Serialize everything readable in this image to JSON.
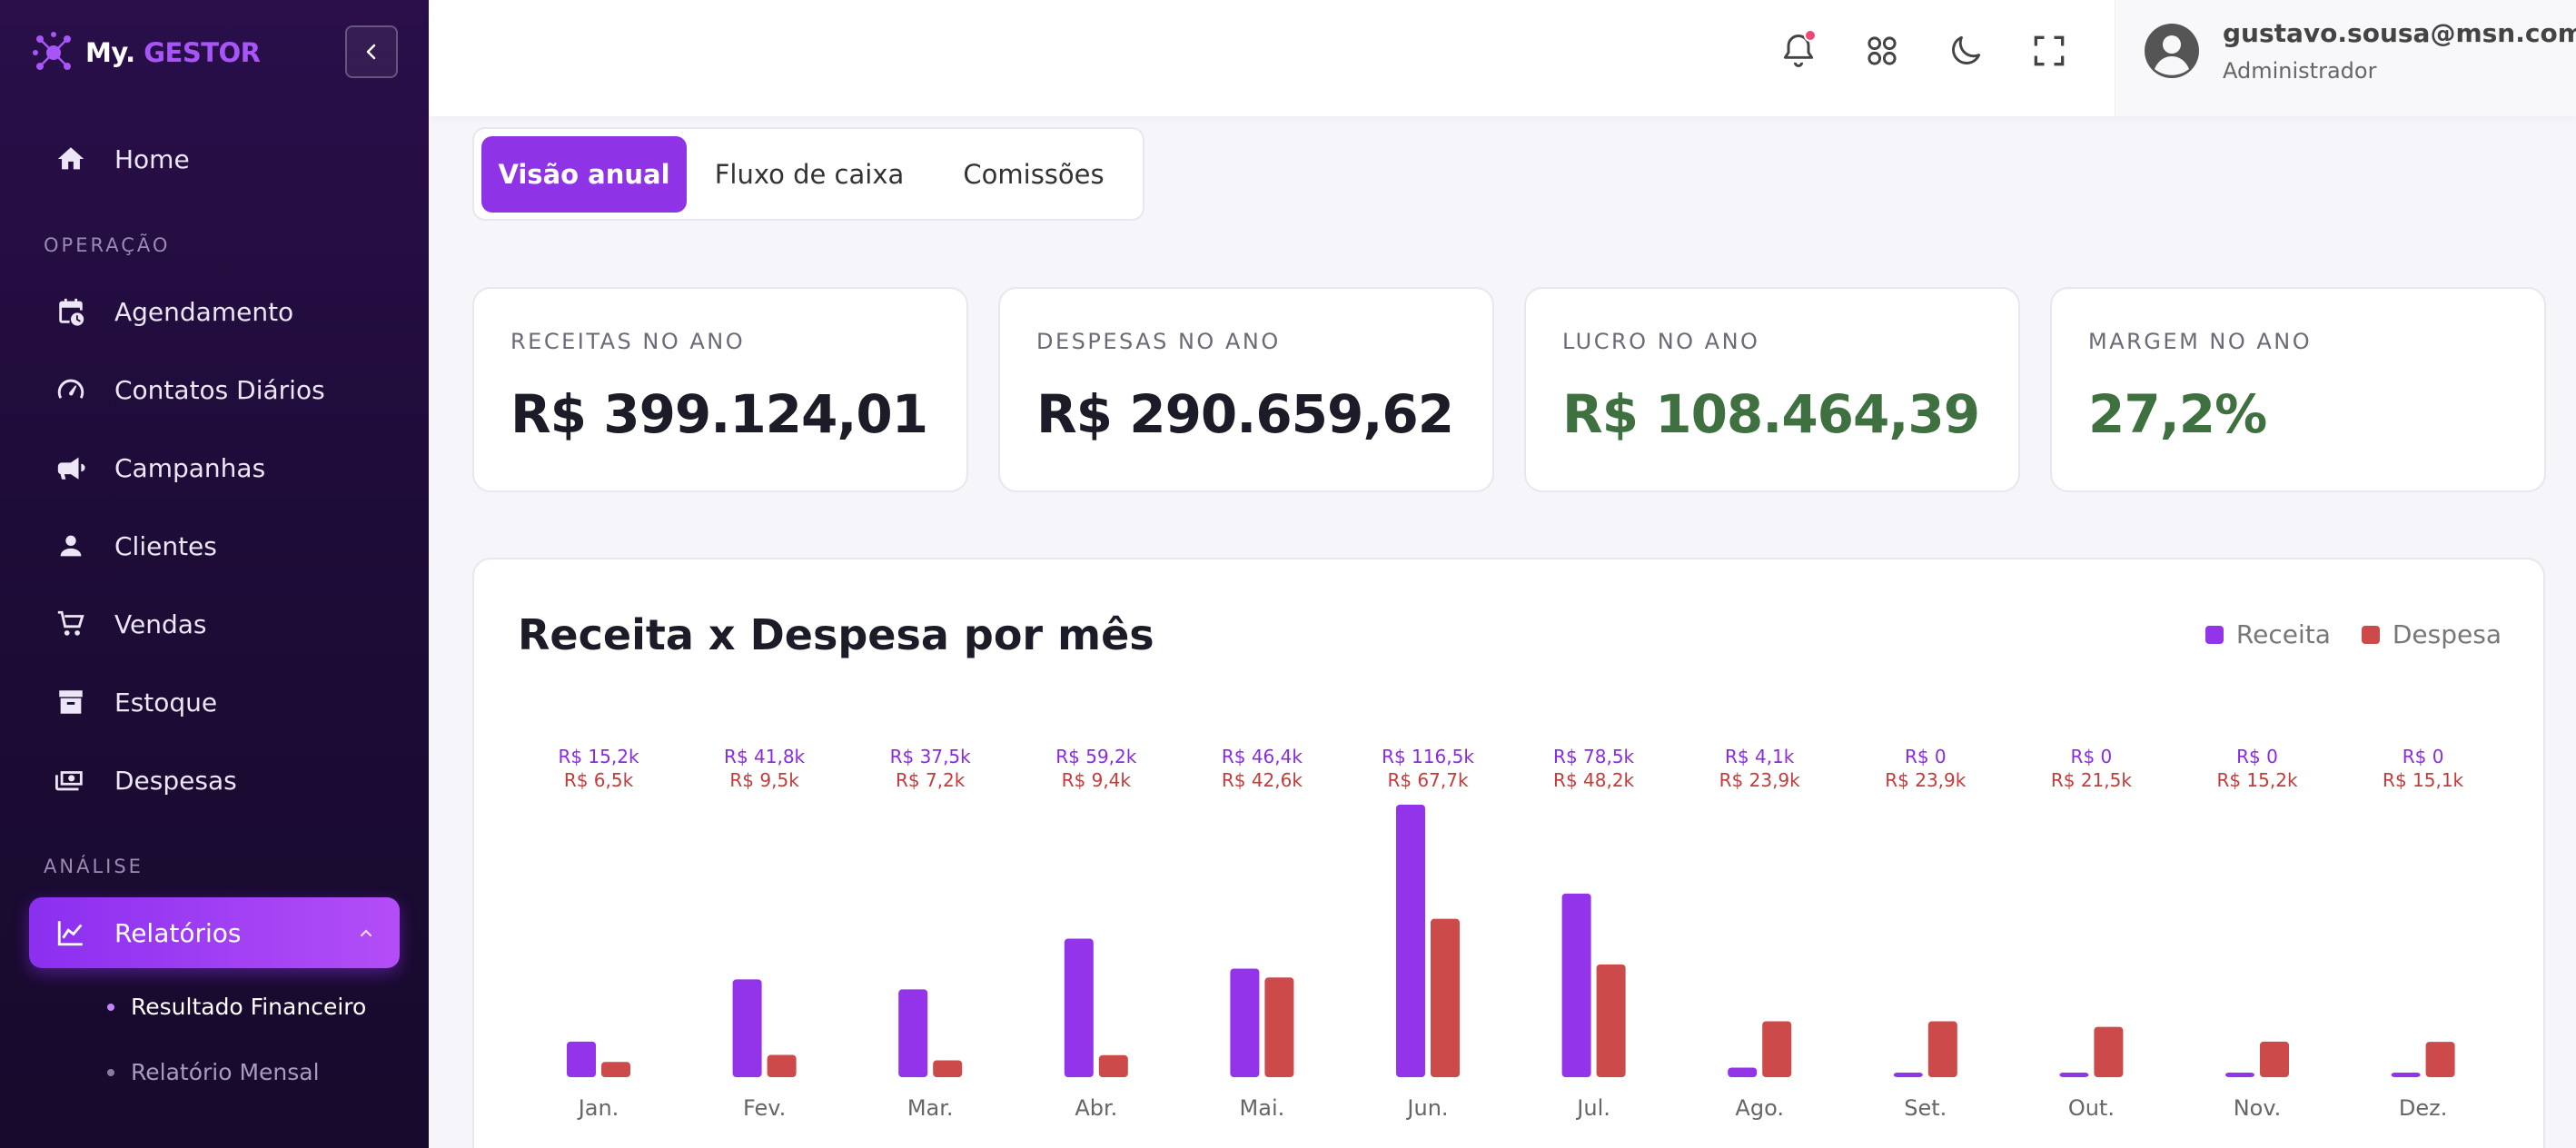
{
  "app": {
    "logo_prefix": "My.",
    "logo_suffix": "GESTOR"
  },
  "sidebar": {
    "home": "Home",
    "section_operacao": "OPERAÇÃO",
    "items": [
      {
        "label": "Agendamento"
      },
      {
        "label": "Contatos Diários"
      },
      {
        "label": "Campanhas"
      },
      {
        "label": "Clientes"
      },
      {
        "label": "Vendas"
      },
      {
        "label": "Estoque"
      },
      {
        "label": "Despesas"
      }
    ],
    "section_analise": "ANÁLISE",
    "relatorios": "Relatórios",
    "sub_items": [
      "Resultado Financeiro",
      "Relatório Mensal"
    ]
  },
  "header": {
    "user_email": "gustavo.sousa@msn.com!",
    "user_role": "Administrador"
  },
  "tabs": [
    "Visão anual",
    "Fluxo de caixa",
    "Comissões"
  ],
  "cards": [
    {
      "label": "RECEITAS NO ANO",
      "value": "R$ 399.124,01"
    },
    {
      "label": "DESPESAS NO ANO",
      "value": "R$ 290.659,62"
    },
    {
      "label": "LUCRO NO ANO",
      "value": "R$ 108.464,39"
    },
    {
      "label": "MARGEM NO ANO",
      "value": "27,2%"
    }
  ],
  "colors": {
    "accent": "#8f33e6",
    "receita": "#9333ea",
    "despesa": "#cc4a4a",
    "positive": "#3f7040"
  },
  "chart_data": {
    "type": "bar",
    "title": "Receita x Despesa por mês",
    "legend_position": "top-right",
    "categories": [
      "Jan.",
      "Fev.",
      "Mar.",
      "Abr.",
      "Mai.",
      "Jun.",
      "Jul.",
      "Ago.",
      "Set.",
      "Out.",
      "Nov.",
      "Dez."
    ],
    "series": [
      {
        "name": "Receita",
        "values": [
          15.2,
          41.8,
          37.5,
          59.2,
          46.4,
          116.5,
          78.5,
          4.1,
          0,
          0,
          0,
          0
        ],
        "labels": [
          "R$ 15,2k",
          "R$ 41,8k",
          "R$ 37,5k",
          "R$ 59,2k",
          "R$ 46,4k",
          "R$ 116,5k",
          "R$ 78,5k",
          "R$ 4,1k",
          "R$ 0",
          "R$ 0",
          "R$ 0",
          "R$ 0"
        ]
      },
      {
        "name": "Despesa",
        "values": [
          6.5,
          9.5,
          7.2,
          9.4,
          42.6,
          67.7,
          48.2,
          23.9,
          23.9,
          21.5,
          15.2,
          15.1
        ],
        "labels": [
          "R$ 6,5k",
          "R$ 9,5k",
          "R$ 7,2k",
          "R$ 9,4k",
          "R$ 42,6k",
          "R$ 67,7k",
          "R$ 48,2k",
          "R$ 23,9k",
          "R$ 23,9k",
          "R$ 21,5k",
          "R$ 15,2k",
          "R$ 15,1k"
        ]
      }
    ],
    "unit": "k",
    "grid": false
  }
}
